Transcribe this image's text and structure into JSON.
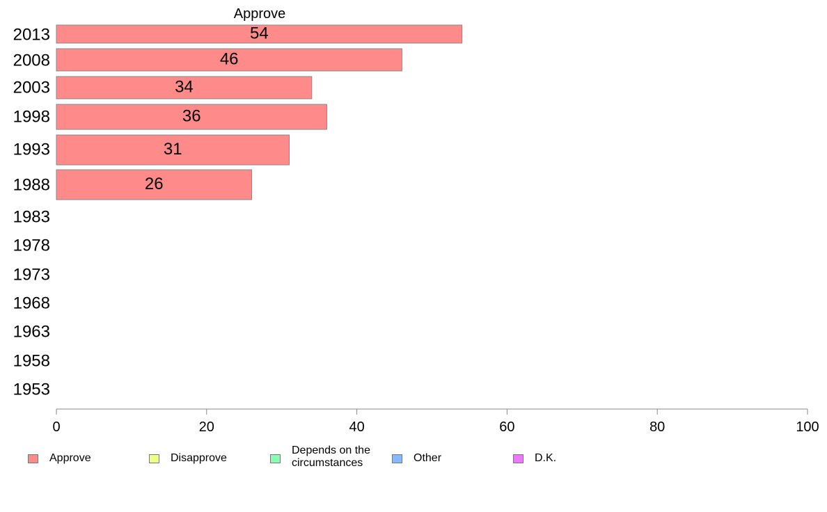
{
  "chart_data": {
    "type": "bar",
    "orientation": "horizontal",
    "title": "Approve",
    "categories": [
      "2013",
      "2008",
      "2003",
      "1998",
      "1993",
      "1988",
      "1983",
      "1978",
      "1973",
      "1968",
      "1963",
      "1958",
      "1953"
    ],
    "series": [
      {
        "name": "Approve",
        "values": [
          54,
          46,
          34,
          36,
          31,
          26,
          null,
          null,
          null,
          null,
          null,
          null,
          null
        ],
        "color": "#ff8a8a"
      }
    ],
    "xlim": [
      0,
      100
    ],
    "xticks": [
      "0",
      "20",
      "40",
      "60",
      "80",
      "100"
    ],
    "grid": false,
    "legend_position": "bottom"
  },
  "legend": [
    {
      "label": "Approve",
      "color": "#ff8a8a"
    },
    {
      "label": "Disapprove",
      "color": "#eeff88"
    },
    {
      "label": "Depends on the circumstances",
      "color": "#88ffb0"
    },
    {
      "label": "Other",
      "color": "#88b8ff"
    },
    {
      "label": "D.K.",
      "color": "#ee77ff"
    }
  ]
}
